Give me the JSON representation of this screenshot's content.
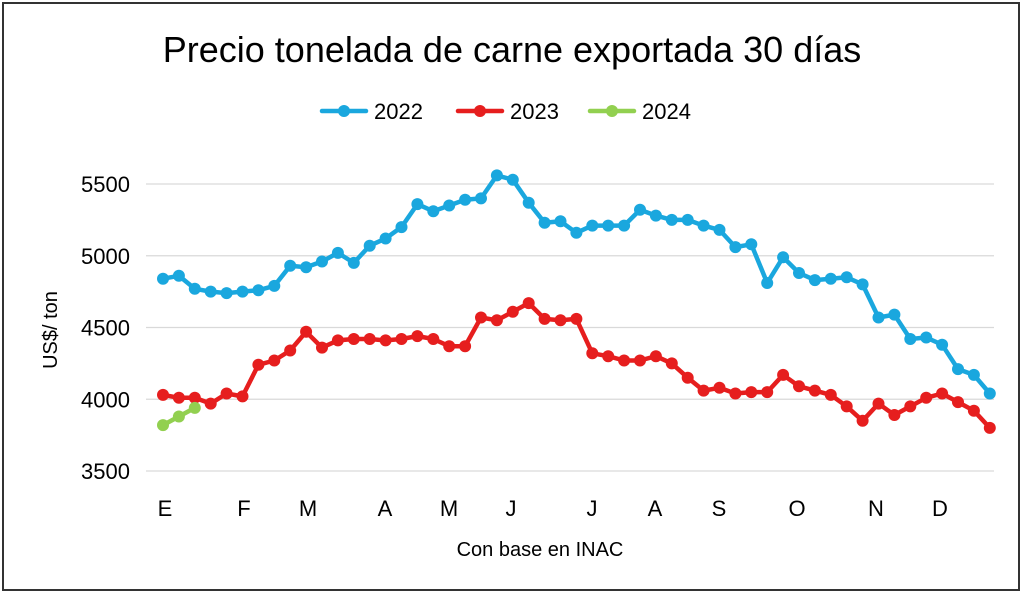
{
  "chart_data": {
    "type": "line",
    "title": "Precio tonelada de carne exportada 30 días",
    "xlabel": "Con base en INAC",
    "ylabel": "US$/ ton",
    "ylim": [
      3500,
      5500
    ],
    "yticks": [
      "3500",
      "4000",
      "4500",
      "5000",
      "5500"
    ],
    "xticks": [
      "E",
      "F",
      "M",
      "A",
      "M",
      "J",
      "J",
      "A",
      "S",
      "O",
      "N",
      "D"
    ],
    "grid": true,
    "legend_position": "top",
    "series": [
      {
        "name": "2022",
        "color": "#1AA7DE",
        "values": [
          4840,
          4860,
          4770,
          4750,
          4740,
          4750,
          4760,
          4790,
          4930,
          4920,
          4960,
          5020,
          4950,
          5070,
          5120,
          5200,
          5360,
          5310,
          5350,
          5390,
          5400,
          5560,
          5530,
          5370,
          5230,
          5240,
          5160,
          5210,
          5210,
          5210,
          5320,
          5280,
          5250,
          5250,
          5210,
          5180,
          5060,
          5080,
          4810,
          4990,
          4880,
          4830,
          4840,
          4850,
          4800,
          4570,
          4590,
          4420,
          4430,
          4380,
          4210,
          4170,
          4040
        ]
      },
      {
        "name": "2023",
        "color": "#E61E1E",
        "values": [
          4030,
          4010,
          4010,
          3970,
          4040,
          4020,
          4240,
          4270,
          4340,
          4470,
          4360,
          4410,
          4420,
          4420,
          4410,
          4420,
          4440,
          4420,
          4370,
          4370,
          4570,
          4550,
          4610,
          4670,
          4560,
          4550,
          4560,
          4320,
          4300,
          4270,
          4270,
          4300,
          4250,
          4150,
          4060,
          4080,
          4040,
          4050,
          4050,
          4170,
          4090,
          4060,
          4030,
          3950,
          3850,
          3970,
          3890,
          3950,
          4010,
          4040,
          3980,
          3920,
          3800
        ]
      },
      {
        "name": "2024",
        "color": "#92D050",
        "values": [
          3820,
          3880,
          3940
        ]
      }
    ]
  }
}
